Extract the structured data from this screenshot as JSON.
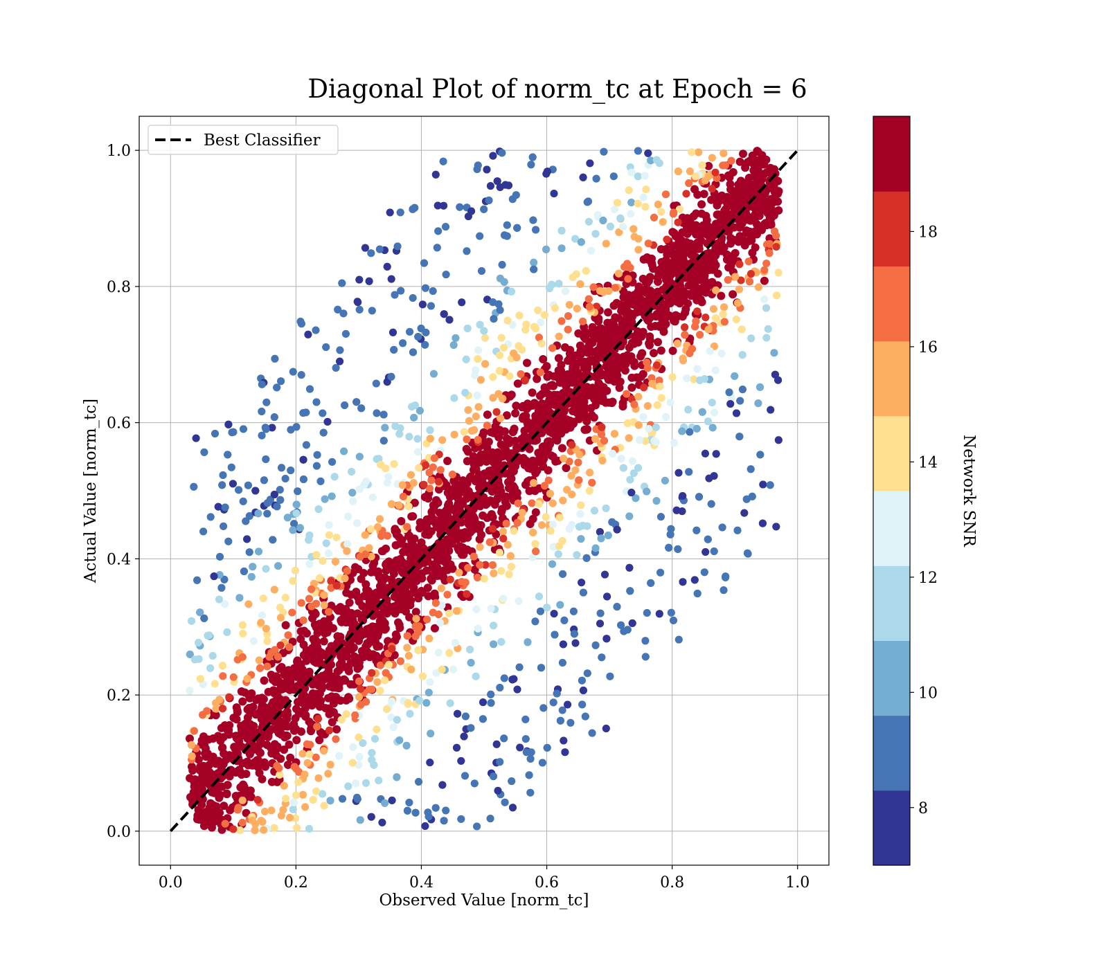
{
  "chart_data": {
    "type": "scatter",
    "title": "Diagonal Plot of norm_tc at Epoch = 6",
    "xlabel": "Observed Value [norm_tc]",
    "ylabel": "Actual Value [norm_tc]",
    "xlim": [
      -0.05,
      1.05
    ],
    "ylim": [
      -0.05,
      1.05
    ],
    "x_ticks": [
      "0.0",
      "0.2",
      "0.4",
      "0.6",
      "0.8",
      "1.0"
    ],
    "y_ticks": [
      "0.0",
      "0.2",
      "0.4",
      "0.6",
      "0.8",
      "1.0"
    ],
    "grid": true,
    "legend": {
      "placement": "top-left",
      "entries": [
        {
          "label": "Best Classifier",
          "style": "dashed",
          "color": "#000000"
        }
      ]
    },
    "reference_line": {
      "x": [
        0.0,
        1.0
      ],
      "y": [
        0.0,
        1.0
      ]
    },
    "colorbar": {
      "label": "Network SNR",
      "range": [
        7,
        20
      ],
      "ticks": [
        "8",
        "10",
        "12",
        "14",
        "16",
        "18"
      ],
      "tick_values": [
        8,
        10,
        12,
        14,
        16,
        18
      ],
      "colors": [
        "#313695",
        "#4575b4",
        "#74add1",
        "#abd9e9",
        "#e0f3f8",
        "#fee090",
        "#fdae61",
        "#f46d43",
        "#d73027",
        "#a50026"
      ]
    },
    "point_distribution": {
      "core_band_halfwidth": 0.12,
      "core_color": "#a50026",
      "outlier_spread_max": 0.45,
      "domain": [
        0.03,
        0.97
      ]
    }
  }
}
